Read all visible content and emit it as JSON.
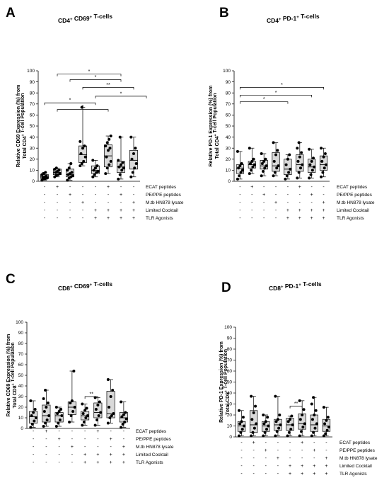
{
  "conditions": [
    "ECAT peptides",
    "PE/PPE peptides",
    "M.tb HN878 lysate",
    "Limited Cocktail",
    "TLR Agonists"
  ],
  "conditions_italic": [
    "M.tb",
    "",
    "",
    "",
    ""
  ],
  "matrix": [
    [
      "-",
      "+",
      "-",
      "-",
      "-",
      "+",
      "-",
      "-"
    ],
    [
      "-",
      "-",
      "+",
      "-",
      "-",
      "-",
      "+",
      "-"
    ],
    [
      "-",
      "-",
      "-",
      "+",
      "-",
      "-",
      "-",
      "+"
    ],
    [
      "-",
      "-",
      "-",
      "-",
      "+",
      "+",
      "+",
      "+"
    ],
    [
      "-",
      "-",
      "-",
      "-",
      "+",
      "+",
      "+",
      "+"
    ]
  ],
  "colors": {
    "box_fill": "#d9d9d9",
    "box_stroke": "#000000",
    "point": "#000000"
  },
  "chart_data": [
    {
      "type": "box",
      "panel": "A",
      "title": "CD4+ CD69+ T-cells",
      "ylabel_line1": "Relative CD69 Expression (%) from",
      "ylabel_line2": "Total CD4+ T-cell Population",
      "ylim": [
        0,
        100
      ],
      "yticks": [
        "0",
        "10",
        "20",
        "30",
        "40",
        "50",
        "60",
        "70",
        "80",
        "90",
        "100"
      ],
      "groups": [
        {
          "q1": 2.5,
          "median": 4,
          "q3": 6,
          "min": 1,
          "max": 8,
          "points": [
            1,
            2,
            2.5,
            3,
            3.5,
            4,
            5,
            6,
            7,
            8
          ]
        },
        {
          "q1": 6,
          "median": 8,
          "q3": 11,
          "min": 4,
          "max": 12,
          "points": [
            4,
            5.5,
            6,
            7,
            8,
            9,
            10,
            11,
            12
          ]
        },
        {
          "q1": 4,
          "median": 6,
          "q3": 11,
          "min": 1,
          "max": 16,
          "points": [
            1,
            3,
            4,
            5,
            6,
            7,
            8,
            10,
            12,
            16
          ]
        },
        {
          "q1": 17,
          "median": 24,
          "q3": 32,
          "min": 14,
          "max": 67,
          "points": [
            14,
            16,
            18,
            22,
            25,
            30,
            32,
            36,
            67
          ]
        },
        {
          "q1": 7,
          "median": 10,
          "q3": 14,
          "min": 4,
          "max": 19,
          "points": [
            4,
            6,
            8,
            9,
            10,
            12,
            14,
            19
          ]
        },
        {
          "q1": 13,
          "median": 23,
          "q3": 33,
          "min": 7,
          "max": 41,
          "points": [
            7,
            12,
            15,
            18,
            22,
            28,
            30,
            32,
            35,
            38,
            41
          ]
        },
        {
          "q1": 8,
          "median": 13,
          "q3": 18,
          "min": 2,
          "max": 40,
          "points": [
            2,
            6,
            10,
            12,
            13,
            15,
            17,
            19,
            40
          ]
        },
        {
          "q1": 11,
          "median": 19,
          "q3": 28,
          "min": 4,
          "max": 40,
          "points": [
            4,
            8,
            12,
            16,
            20,
            25,
            30,
            40
          ]
        }
      ],
      "significance": [
        {
          "from": 1,
          "to": 6,
          "label": "*",
          "y": 97
        },
        {
          "from": 2,
          "to": 6,
          "label": "*",
          "y": 92
        },
        {
          "from": 3,
          "to": 7,
          "label": "**",
          "y": 85
        },
        {
          "from": 4,
          "to": 8,
          "label": "*",
          "y": 77
        },
        {
          "from": 0,
          "to": 4,
          "label": "*",
          "y": 71
        },
        {
          "from": 1,
          "to": 5,
          "label": "*",
          "y": 65
        }
      ]
    },
    {
      "type": "box",
      "panel": "B",
      "title": "CD4+ PD-1+ T-cells",
      "ylabel_line1": "Relative PD-1 Expression (%) from",
      "ylabel_line2": "Total CD4+ T-cell Population",
      "ylim": [
        0,
        100
      ],
      "yticks": [
        "0",
        "10",
        "20",
        "30",
        "40",
        "50",
        "60",
        "70",
        "80",
        "90",
        "100"
      ],
      "groups": [
        {
          "q1": 7,
          "median": 12,
          "q3": 15,
          "min": 2,
          "max": 27,
          "points": [
            2,
            5,
            8,
            10,
            12,
            14,
            16,
            27
          ]
        },
        {
          "q1": 12,
          "median": 15,
          "q3": 18,
          "min": 7,
          "max": 30,
          "points": [
            7,
            10,
            13,
            15,
            16,
            18,
            20,
            30
          ]
        },
        {
          "q1": 11,
          "median": 14,
          "q3": 19,
          "min": 5,
          "max": 25,
          "points": [
            5,
            9,
            12,
            14,
            16,
            18,
            20,
            25
          ]
        },
        {
          "q1": 9,
          "median": 14,
          "q3": 26,
          "min": 5,
          "max": 35,
          "points": [
            5,
            8,
            12,
            14,
            18,
            24,
            28,
            35
          ]
        },
        {
          "q1": 6,
          "median": 11,
          "q3": 20,
          "min": 2,
          "max": 24,
          "points": [
            2,
            5,
            8,
            11,
            15,
            20,
            24
          ]
        },
        {
          "q1": 9,
          "median": 15,
          "q3": 24,
          "min": 3,
          "max": 35,
          "points": [
            3,
            8,
            12,
            15,
            18,
            22,
            26,
            30,
            35
          ]
        },
        {
          "q1": 8,
          "median": 13,
          "q3": 20,
          "min": 3,
          "max": 29,
          "points": [
            3,
            6,
            10,
            13,
            15,
            18,
            21,
            29
          ]
        },
        {
          "q1": 10,
          "median": 15,
          "q3": 23,
          "min": 4,
          "max": 30,
          "points": [
            4,
            8,
            12,
            15,
            18,
            22,
            25,
            30
          ]
        }
      ],
      "significance": [
        {
          "from": 0,
          "to": 7,
          "label": "*",
          "y": 85
        },
        {
          "from": 0,
          "to": 6,
          "label": "*",
          "y": 78
        },
        {
          "from": 0,
          "to": 4,
          "label": "*",
          "y": 72
        }
      ]
    },
    {
      "type": "box",
      "panel": "C",
      "title": "CD8+ CD69+ T-cells",
      "ylabel_line1": "Relative CD69 Expression (%) from",
      "ylabel_line2": "Total CD8+ T-cell Population",
      "ylim": [
        0,
        100
      ],
      "yticks": [
        "0",
        "10",
        "20",
        "30",
        "40",
        "50",
        "60",
        "70",
        "80",
        "90",
        "100"
      ],
      "groups": [
        {
          "q1": 5,
          "median": 11,
          "q3": 16,
          "min": 1,
          "max": 26,
          "points": [
            1,
            4,
            7,
            10,
            12,
            15,
            18,
            26
          ]
        },
        {
          "q1": 6,
          "median": 12,
          "q3": 22,
          "min": 2,
          "max": 36,
          "points": [
            2,
            5,
            8,
            12,
            16,
            20,
            24,
            28,
            36
          ]
        },
        {
          "q1": 6,
          "median": 12,
          "q3": 15,
          "min": 2,
          "max": 20,
          "points": [
            2,
            5,
            8,
            12,
            14,
            16,
            18,
            20
          ]
        },
        {
          "q1": 13,
          "median": 20,
          "q3": 25,
          "min": 6,
          "max": 54,
          "points": [
            6,
            12,
            16,
            20,
            24,
            26,
            54
          ]
        },
        {
          "q1": 8,
          "median": 12,
          "q3": 16,
          "min": 3,
          "max": 23,
          "points": [
            3,
            6,
            10,
            12,
            14,
            17,
            19,
            23
          ]
        },
        {
          "q1": 10,
          "median": 15,
          "q3": 24,
          "min": 3,
          "max": 29,
          "points": [
            3,
            8,
            12,
            15,
            18,
            22,
            25,
            29
          ]
        },
        {
          "q1": 10,
          "median": 14,
          "q3": 35,
          "min": 5,
          "max": 46,
          "points": [
            5,
            10,
            12,
            14,
            20,
            30,
            36,
            46
          ]
        },
        {
          "q1": 6,
          "median": 10,
          "q3": 15,
          "min": 1,
          "max": 25,
          "points": [
            1,
            4,
            6,
            9,
            11,
            13,
            15,
            25
          ]
        }
      ],
      "significance": [
        {
          "from": 4,
          "to": 5,
          "label": "**",
          "y": 30
        }
      ]
    },
    {
      "type": "box",
      "panel": "D",
      "title": "CD8+ PD-1+ T-cells",
      "ylabel_line1": "Relative PD-1 Expression (%) from",
      "ylabel_line2": "Total CD8+ T-cell Population",
      "ylim": [
        0,
        100
      ],
      "yticks": [
        "0",
        "10",
        "20",
        "30",
        "40",
        "50",
        "60",
        "70",
        "80",
        "90",
        "100"
      ],
      "groups": [
        {
          "q1": 5,
          "median": 10,
          "q3": 14,
          "min": 1,
          "max": 24,
          "points": [
            1,
            4,
            7,
            10,
            12,
            14,
            18,
            24
          ]
        },
        {
          "q1": 4,
          "median": 11,
          "q3": 24,
          "min": 1,
          "max": 37,
          "points": [
            1,
            4,
            8,
            12,
            16,
            22,
            28,
            37
          ]
        },
        {
          "q1": 5,
          "median": 10,
          "q3": 14,
          "min": 1,
          "max": 20,
          "points": [
            1,
            4,
            7,
            10,
            12,
            14,
            18,
            20
          ]
        },
        {
          "q1": 6,
          "median": 11,
          "q3": 16,
          "min": 1,
          "max": 37,
          "points": [
            1,
            5,
            8,
            11,
            14,
            16,
            20,
            37
          ]
        },
        {
          "q1": 6,
          "median": 11,
          "q3": 17,
          "min": 1,
          "max": 19,
          "points": [
            1,
            4,
            7,
            11,
            14,
            16,
            19
          ]
        },
        {
          "q1": 7,
          "median": 12,
          "q3": 21,
          "min": 1,
          "max": 33,
          "points": [
            1,
            5,
            9,
            12,
            16,
            20,
            25,
            33
          ]
        },
        {
          "q1": 5,
          "median": 11,
          "q3": 20,
          "min": 1,
          "max": 36,
          "points": [
            1,
            4,
            8,
            12,
            16,
            20,
            24,
            30,
            36
          ]
        },
        {
          "q1": 5,
          "median": 10,
          "q3": 16,
          "min": 1,
          "max": 27,
          "points": [
            1,
            3,
            6,
            9,
            12,
            15,
            18,
            27
          ]
        }
      ],
      "significance": [
        {
          "from": 4,
          "to": 5,
          "label": "**",
          "y": 28
        }
      ]
    }
  ]
}
